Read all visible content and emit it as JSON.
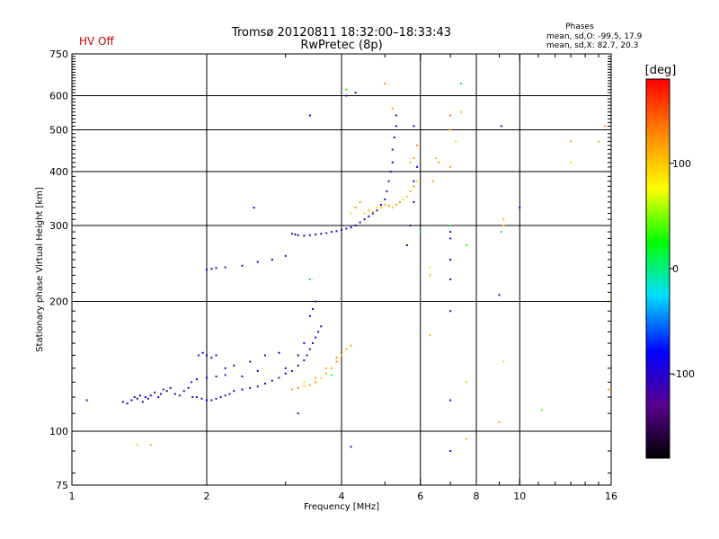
{
  "chart_data": {
    "type": "scatter",
    "title": "Tromsø 20120811 18:32:00–18:33:43",
    "subtitle": "RwPretec (8p)",
    "status_label": "HV Off",
    "status_color": "#cc0000",
    "phases": {
      "heading": "Phases",
      "line_o": "mean, sd,O: -99.5, 17.9",
      "line_x": "mean, sd,X: 82.7, 20.3"
    },
    "xlabel": "Frequency [MHz]",
    "ylabel": "Stationary phase Virtual Height [km]",
    "x_scale": "log",
    "y_scale": "log",
    "xlim": [
      1,
      16
    ],
    "ylim": [
      75,
      750
    ],
    "x_ticks": [
      {
        "value": 1,
        "label": "1"
      },
      {
        "value": 2,
        "label": "2"
      },
      {
        "value": 4,
        "label": "4"
      },
      {
        "value": 6,
        "label": "6"
      },
      {
        "value": 8,
        "label": "8"
      },
      {
        "value": 10,
        "label": "10"
      },
      {
        "value": 16,
        "label": "16"
      }
    ],
    "x_grid": [
      2,
      4,
      6,
      8,
      10
    ],
    "y_ticks": [
      {
        "value": 75,
        "label": "75"
      },
      {
        "value": 100,
        "label": "100"
      },
      {
        "value": 200,
        "label": "200"
      },
      {
        "value": 300,
        "label": "300"
      },
      {
        "value": 400,
        "label": "400"
      },
      {
        "value": 500,
        "label": "500"
      },
      {
        "value": 600,
        "label": "600"
      },
      {
        "value": 750,
        "label": "750"
      }
    ],
    "y_grid": [
      100,
      200,
      300,
      400,
      500,
      600
    ],
    "grid": true,
    "colorbar": {
      "label": "[deg]",
      "range": [
        -180,
        180
      ],
      "ticks": [
        {
          "value": 100,
          "label": "100"
        },
        {
          "value": 0,
          "label": "0"
        },
        {
          "value": -100,
          "label": "-100"
        }
      ]
    },
    "series": [
      {
        "mode": "O",
        "phase_deg": -100,
        "points": [
          [
            1.08,
            118
          ],
          [
            1.3,
            117
          ],
          [
            1.33,
            116
          ],
          [
            1.36,
            118
          ],
          [
            1.38,
            120
          ],
          [
            1.4,
            119
          ],
          [
            1.42,
            121
          ],
          [
            1.44,
            117
          ],
          [
            1.46,
            120
          ],
          [
            1.48,
            119
          ],
          [
            1.5,
            121
          ],
          [
            1.53,
            123
          ],
          [
            1.56,
            120
          ],
          [
            1.58,
            122
          ],
          [
            1.6,
            125
          ],
          [
            1.63,
            124
          ],
          [
            1.66,
            126
          ],
          [
            1.7,
            122
          ],
          [
            1.74,
            121
          ],
          [
            1.78,
            124
          ],
          [
            1.82,
            126
          ],
          [
            1.86,
            120
          ],
          [
            1.9,
            120
          ],
          [
            1.95,
            119
          ],
          [
            2.0,
            118
          ],
          [
            2.05,
            118
          ],
          [
            2.1,
            119
          ],
          [
            2.15,
            120
          ],
          [
            2.2,
            121
          ],
          [
            2.25,
            122
          ],
          [
            2.3,
            124
          ],
          [
            2.4,
            125
          ],
          [
            2.5,
            126
          ],
          [
            2.6,
            127
          ],
          [
            2.7,
            129
          ],
          [
            2.8,
            131
          ],
          [
            2.9,
            133
          ],
          [
            3.0,
            136
          ],
          [
            3.1,
            138
          ],
          [
            3.2,
            142
          ],
          [
            3.3,
            146
          ],
          [
            3.35,
            150
          ],
          [
            3.4,
            155
          ],
          [
            3.45,
            160
          ],
          [
            3.5,
            165
          ],
          [
            3.55,
            170
          ],
          [
            3.6,
            175
          ],
          [
            3.4,
            185
          ],
          [
            3.45,
            192
          ],
          [
            3.5,
            200
          ],
          [
            1.92,
            150
          ],
          [
            1.96,
            152
          ],
          [
            2.0,
            150
          ],
          [
            2.05,
            148
          ],
          [
            2.1,
            150
          ],
          [
            2.2,
            140
          ],
          [
            2.3,
            142
          ],
          [
            2.5,
            145
          ],
          [
            2.7,
            150
          ],
          [
            2.9,
            152
          ],
          [
            1.85,
            130
          ],
          [
            1.9,
            132
          ],
          [
            2.0,
            133
          ],
          [
            2.1,
            134
          ],
          [
            2.2,
            135
          ],
          [
            2.4,
            134
          ],
          [
            2.6,
            138
          ],
          [
            3.0,
            140
          ],
          [
            3.2,
            150
          ],
          [
            3.3,
            160
          ],
          [
            3.1,
            287
          ],
          [
            3.15,
            286
          ],
          [
            3.2,
            285
          ],
          [
            3.3,
            284
          ],
          [
            3.4,
            285
          ],
          [
            3.5,
            286
          ],
          [
            3.6,
            287
          ],
          [
            3.7,
            288
          ],
          [
            3.8,
            290
          ],
          [
            3.9,
            291
          ],
          [
            4.0,
            293
          ],
          [
            4.1,
            295
          ],
          [
            4.2,
            297
          ],
          [
            4.3,
            300
          ],
          [
            4.4,
            305
          ],
          [
            4.5,
            310
          ],
          [
            4.6,
            315
          ],
          [
            4.7,
            320
          ],
          [
            4.8,
            325
          ],
          [
            4.9,
            335
          ],
          [
            5.0,
            345
          ],
          [
            5.05,
            360
          ],
          [
            5.1,
            380
          ],
          [
            5.15,
            400
          ],
          [
            5.2,
            420
          ],
          [
            5.2,
            450
          ],
          [
            5.25,
            480
          ],
          [
            5.3,
            510
          ],
          [
            5.3,
            540
          ],
          [
            4.1,
            600
          ],
          [
            4.3,
            610
          ],
          [
            3.4,
            540
          ],
          [
            2.0,
            237
          ],
          [
            2.05,
            238
          ],
          [
            2.1,
            239
          ],
          [
            2.2,
            240
          ],
          [
            2.4,
            242
          ],
          [
            2.6,
            247
          ],
          [
            2.8,
            250
          ],
          [
            3.0,
            255
          ],
          [
            2.55,
            330
          ],
          [
            5.6,
            270
          ],
          [
            5.7,
            300
          ],
          [
            5.8,
            340
          ],
          [
            5.8,
            380
          ],
          [
            5.9,
            410
          ],
          [
            7.0,
            290
          ],
          [
            7.0,
            280
          ],
          [
            7.0,
            250
          ],
          [
            7.0,
            225
          ],
          [
            7.0,
            190
          ],
          [
            7.0,
            118
          ],
          [
            7.0,
            90
          ],
          [
            9.1,
            510
          ],
          [
            9.0,
            207
          ],
          [
            10.0,
            330
          ],
          [
            4.2,
            92
          ],
          [
            3.2,
            110
          ],
          [
            5.8,
            510
          ]
        ]
      },
      {
        "mode": "X",
        "phase_deg": 110,
        "points": [
          [
            3.1,
            125
          ],
          [
            3.2,
            126
          ],
          [
            3.3,
            127
          ],
          [
            3.4,
            128
          ],
          [
            3.5,
            130
          ],
          [
            3.6,
            133
          ],
          [
            3.7,
            136
          ],
          [
            3.8,
            140
          ],
          [
            3.9,
            145
          ],
          [
            4.0,
            150
          ],
          [
            4.1,
            155
          ],
          [
            4.2,
            158
          ],
          [
            3.3,
            130
          ],
          [
            3.5,
            133
          ],
          [
            3.7,
            140
          ],
          [
            3.9,
            148
          ],
          [
            4.5,
            320
          ],
          [
            4.6,
            325
          ],
          [
            4.7,
            322
          ],
          [
            4.8,
            330
          ],
          [
            4.9,
            330
          ],
          [
            5.0,
            335
          ],
          [
            5.1,
            333
          ],
          [
            5.2,
            330
          ],
          [
            5.3,
            335
          ],
          [
            5.4,
            340
          ],
          [
            5.5,
            345
          ],
          [
            5.6,
            350
          ],
          [
            5.7,
            360
          ],
          [
            5.8,
            370
          ],
          [
            5.9,
            380
          ],
          [
            4.4,
            340
          ],
          [
            4.3,
            330
          ],
          [
            4.2,
            320
          ],
          [
            5.7,
            420
          ],
          [
            5.8,
            430
          ],
          [
            5.9,
            460
          ],
          [
            6.5,
            430
          ],
          [
            6.6,
            420
          ],
          [
            7.0,
            410
          ],
          [
            7.2,
            470
          ],
          [
            7.4,
            550
          ],
          [
            7.0,
            500
          ],
          [
            7.0,
            540
          ],
          [
            1.4,
            93
          ],
          [
            1.5,
            93
          ],
          [
            6.4,
            380
          ],
          [
            6.3,
            240
          ],
          [
            6.3,
            230
          ],
          [
            5.2,
            560
          ],
          [
            5.0,
            640
          ],
          [
            9.2,
            300
          ],
          [
            9.2,
            310
          ],
          [
            13.0,
            470
          ],
          [
            13.0,
            420
          ],
          [
            15.0,
            470
          ],
          [
            15.5,
            510
          ],
          [
            15.8,
            430
          ],
          [
            7.6,
            130
          ],
          [
            7.6,
            96
          ],
          [
            9.0,
            105
          ],
          [
            9.2,
            145
          ],
          [
            6.3,
            167
          ],
          [
            15.8,
            200
          ],
          [
            15.8,
            125
          ]
        ]
      },
      {
        "mode": "other",
        "phase_deg": 20,
        "points": [
          [
            6.0,
            290
          ],
          [
            7.0,
            300
          ],
          [
            7.6,
            270
          ],
          [
            9.1,
            290
          ],
          [
            3.4,
            225
          ],
          [
            3.8,
            135
          ],
          [
            11.2,
            112
          ],
          [
            7.4,
            640
          ],
          [
            4.1,
            620
          ]
        ]
      }
    ]
  }
}
